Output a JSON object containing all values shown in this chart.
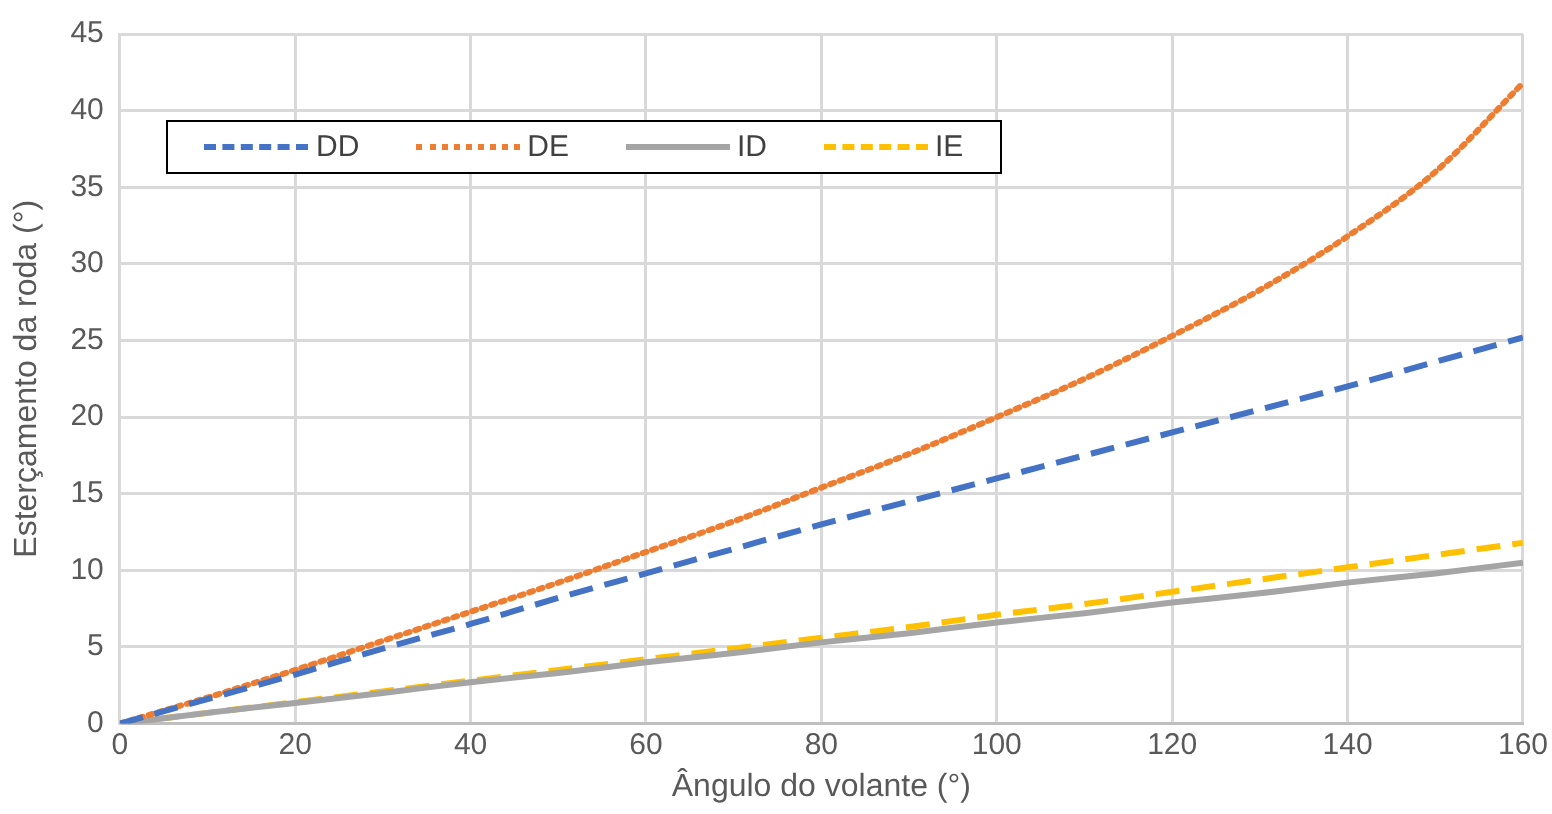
{
  "chart_data": {
    "type": "line",
    "xlabel": "Ângulo do volante (°)",
    "ylabel": "Esterçamento da roda (°)",
    "x": [
      0,
      10,
      20,
      30,
      40,
      50,
      60,
      70,
      80,
      90,
      100,
      110,
      120,
      130,
      140,
      150,
      160
    ],
    "xlim": [
      0,
      160
    ],
    "xticks": [
      0,
      20,
      40,
      60,
      80,
      100,
      120,
      140,
      160
    ],
    "ylim": [
      0,
      45
    ],
    "yticks": [
      0,
      5,
      10,
      15,
      20,
      25,
      30,
      35,
      40,
      45
    ],
    "grid": true,
    "legend": "top left",
    "marker": "none",
    "series": [
      {
        "name": "DD",
        "color": "#4472c4",
        "line_style": "dashed",
        "values": [
          0,
          1.6,
          3.2,
          4.9,
          6.5,
          8.2,
          9.8,
          11.4,
          13.0,
          14.5,
          16.0,
          17.5,
          19.0,
          20.5,
          22.0,
          23.6,
          25.2
        ]
      },
      {
        "name": "DE",
        "color": "#ed7d31",
        "line_style": "dotted",
        "values": [
          0,
          1.7,
          3.5,
          5.4,
          7.3,
          9.2,
          11.2,
          13.2,
          15.4,
          17.6,
          20.0,
          22.5,
          25.3,
          28.3,
          31.8,
          36.0,
          41.8
        ]
      },
      {
        "name": "ID",
        "color": "#a5a5a5",
        "line_style": "solid",
        "values": [
          0,
          0.7,
          1.35,
          2.0,
          2.7,
          3.3,
          4.0,
          4.6,
          5.3,
          5.9,
          6.6,
          7.2,
          7.9,
          8.5,
          9.2,
          9.8,
          10.5
        ]
      },
      {
        "name": "IE",
        "color": "#ffc000",
        "line_style": "dashed",
        "values": [
          0,
          0.7,
          1.4,
          2.1,
          2.8,
          3.5,
          4.2,
          4.9,
          5.6,
          6.3,
          7.1,
          7.8,
          8.6,
          9.4,
          10.2,
          11.0,
          11.8
        ]
      }
    ]
  }
}
